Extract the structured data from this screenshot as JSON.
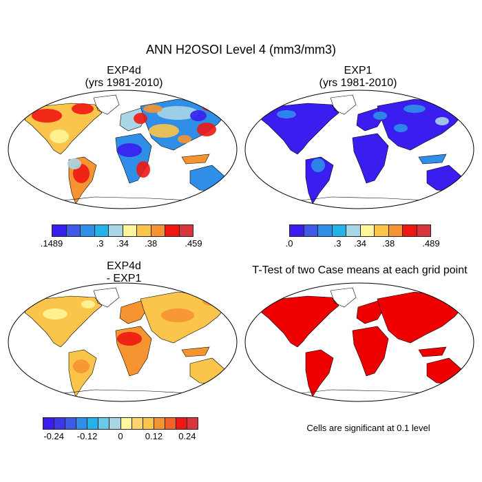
{
  "title": "ANN H2OSOI Level 4 (mm3/mm3)",
  "panels": {
    "p1": {
      "title_line1": "EXP4d",
      "title_line2": "(yrs 1981-2010)"
    },
    "p2": {
      "title_line1": "EXP1",
      "title_line2": "(yrs 1981-2010)"
    },
    "p3": {
      "title_line1": "EXP4d",
      "title_line2": "- EXP1"
    },
    "p4": {
      "title_line1": "T-Test of two Case means at each grid point"
    }
  },
  "colorbars": {
    "cb1": {
      "colors": [
        "#3a1ef0",
        "#3f5ae6",
        "#2f8fe8",
        "#23b3ea",
        "#a9d6e6",
        "#fff59a",
        "#fbc44a",
        "#f69432",
        "#ef1712",
        "#d8353c"
      ],
      "labels": [
        ".1489",
        ".3",
        ".34",
        ".38",
        ".459"
      ]
    },
    "cb2": {
      "colors": [
        "#3a1ef0",
        "#3f5ae6",
        "#2f8fe8",
        "#23b3ea",
        "#a9d6e6",
        "#fff59a",
        "#fbc44a",
        "#f69432",
        "#ef1712",
        "#d8353c"
      ],
      "labels": [
        ".0",
        ".3",
        ".34",
        ".38",
        ".489"
      ]
    },
    "cb3": {
      "colors": [
        "#3a1ef0",
        "#3a38e8",
        "#3f5ae6",
        "#2f8fe8",
        "#23b3ea",
        "#6cc8ea",
        "#a9d6e6",
        "#fff59a",
        "#fbd66a",
        "#fbc44a",
        "#f69432",
        "#f36326",
        "#ef1712",
        "#d8353c"
      ],
      "labels": [
        "-0.24",
        "-0.12",
        "0",
        "0.12",
        "0.24"
      ]
    }
  },
  "note": "Cells are significant at 0.1 level",
  "colors": {
    "ocean": "#ffffff",
    "blue": "#3a1ef0",
    "midblue": "#2f8fe8",
    "lightblue": "#a9d6e6",
    "yellow": "#fff59a",
    "orange": "#f69432",
    "lightorange": "#fbc44a",
    "red": "#ef1712",
    "sig_red": "#ee0000"
  }
}
